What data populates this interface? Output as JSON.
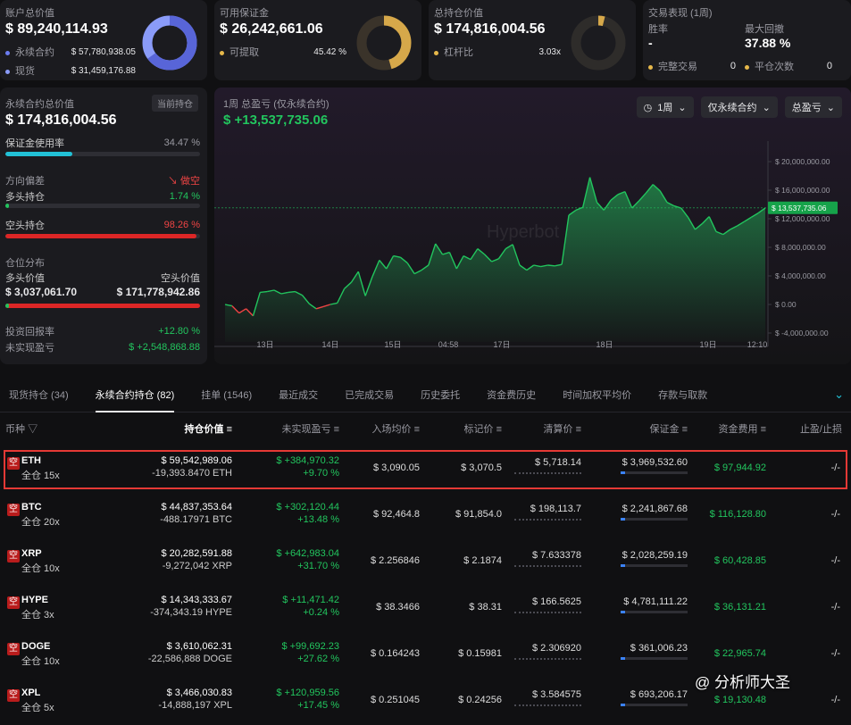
{
  "summary": {
    "account": {
      "label": "账户总价值",
      "value": "$ 89,240,114.93",
      "items": [
        {
          "label": "永续合约",
          "value": "$ 57,780,938.05",
          "color": "#6b7cf0"
        },
        {
          "label": "现货",
          "value": "$ 31,459,176.88",
          "color": "#8a9bf8"
        }
      ],
      "ring_fraction": 0.65
    },
    "margin": {
      "label": "可用保证金",
      "value": "$ 26,242,661.06",
      "items": [
        {
          "label": "可提取",
          "value": "45.42 %",
          "color": "#e6b84a"
        }
      ],
      "ring_fraction": 0.4542
    },
    "position": {
      "label": "总持仓价值",
      "value": "$ 174,816,004.56",
      "items": [
        {
          "label": "杠杆比",
          "value": "3.03x",
          "color": "#e6b84a"
        }
      ],
      "ring_fraction": 0.04
    },
    "perf": {
      "label": "交易表现 (1周)",
      "win_label": "胜率",
      "win_value": "-",
      "dd_label": "最大回撤",
      "dd_value": "37.88 %",
      "closed_label": "完整交易",
      "closed_value": "0",
      "pos_label": "平仓次数",
      "pos_value": "0"
    }
  },
  "left": {
    "title": "永续合约总价值",
    "badge": "当前持仓",
    "value": "$ 174,816,004.56",
    "margin_usage_label": "保证金使用率",
    "margin_usage_value": "34.47 %",
    "margin_usage": 0.3447,
    "direction_label": "方向偏差",
    "direction_value": "做空",
    "long_label": "多头持仓",
    "long_value": "1.74 %",
    "long": 0.0174,
    "short_label": "空头持仓",
    "short_value": "98.26 %",
    "short": 0.9826,
    "dist_label": "仓位分布",
    "long_val_label": "多头价值",
    "short_val_label": "空头价值",
    "long_val": "$ 3,037,061.70",
    "short_val": "$ 171,778,942.86",
    "roi_label": "投资回报率",
    "roi_value": "+12.80 %",
    "upnl_label": "未实现盈亏",
    "upnl_value": "$ +2,548,868.88"
  },
  "chart": {
    "title": "1周 总盈亏 (仅永续合约)",
    "value": "$ +13,537,735.06",
    "filters": [
      "1周",
      "仅永续合约",
      "总盈亏"
    ],
    "watermark": "Hyperbot",
    "current_label": "$ 13,537,735.06"
  },
  "chart_data": {
    "type": "area",
    "y_ticks": [
      "$ 20,000,000.00",
      "$ 16,000,000.00",
      "$ 12,000,000.00",
      "$ 8,000,000.00",
      "$ 4,000,000.00",
      "$ 0.00",
      "$ -4,000,000.00"
    ],
    "x_ticks": [
      "13日",
      "14日",
      "15日",
      "04:58",
      "17日",
      "18日",
      "19日",
      "12:10"
    ],
    "ylim": [
      -4000000,
      24000000
    ],
    "values": [
      0,
      -200000,
      -1200000,
      -600000,
      -1600000,
      1700000,
      1800000,
      2000000,
      1500000,
      1700000,
      1800000,
      1300000,
      100000,
      -600000,
      -300000,
      0,
      200000,
      2200000,
      3100000,
      4600000,
      1200000,
      3900000,
      6200000,
      5000000,
      6800000,
      6600000,
      5800000,
      4300000,
      4800000,
      5500000,
      8500000,
      7000000,
      7300000,
      5000000,
      6800000,
      6300000,
      7800000,
      7000000,
      6000000,
      6400000,
      7800000,
      8400000,
      5500000,
      4800000,
      5500000,
      5300000,
      5500000,
      5400000,
      5600000,
      12500000,
      13200000,
      13600000,
      17800000,
      14300000,
      13200000,
      14600000,
      15400000,
      15800000,
      13500000,
      14500000,
      15600000,
      16800000,
      15900000,
      14300000,
      13800000,
      13500000,
      12200000,
      10500000,
      11300000,
      12300000,
      10200000,
      9800000,
      10500000,
      11000000,
      11600000,
      12200000,
      12800000,
      13500000
    ]
  },
  "tabs": [
    "现货持仓 (34)",
    "永续合约持仓 (82)",
    "挂单 (1546)",
    "最近成交",
    "已完成交易",
    "历史委托",
    "资金费历史",
    "时间加权平均价",
    "存款与取款"
  ],
  "columns": [
    "币种",
    "持仓价值",
    "未实现盈亏",
    "入场均价",
    "标记价",
    "清算价",
    "保证金",
    "资金费用",
    "止盈/止损"
  ],
  "rows": [
    {
      "tag": "空",
      "coin": "ETH",
      "lev": "全仓 15x",
      "val": "$ 59,542,989.06",
      "qty": "-19,393.8470 ETH",
      "pnl": "$ +384,970.32",
      "pct": "+9.70 %",
      "entry": "$ 3,090.05",
      "mark": "$ 3,070.5",
      "liq": "$ 5,718.14",
      "margin": "$ 3,969,532.60",
      "fund": "$ 97,944.92",
      "tp": "-/-"
    },
    {
      "tag": "空",
      "coin": "BTC",
      "lev": "全仓 20x",
      "val": "$ 44,837,353.64",
      "qty": "-488.17971 BTC",
      "pnl": "$ +302,120.44",
      "pct": "+13.48 %",
      "entry": "$ 92,464.8",
      "mark": "$ 91,854.0",
      "liq": "$ 198,113.7",
      "margin": "$ 2,241,867.68",
      "fund": "$ 116,128.80",
      "tp": "-/-"
    },
    {
      "tag": "空",
      "coin": "XRP",
      "lev": "全仓 10x",
      "val": "$ 20,282,591.88",
      "qty": "-9,272,042 XRP",
      "pnl": "$ +642,983.04",
      "pct": "+31.70 %",
      "entry": "$ 2.256846",
      "mark": "$ 2.1874",
      "liq": "$ 7.633378",
      "margin": "$ 2,028,259.19",
      "fund": "$ 60,428.85",
      "tp": "-/-"
    },
    {
      "tag": "空",
      "coin": "HYPE",
      "lev": "全仓 3x",
      "val": "$ 14,343,333.67",
      "qty": "-374,343.19 HYPE",
      "pnl": "$ +11,471.42",
      "pct": "+0.24 %",
      "entry": "$ 38.3466",
      "mark": "$ 38.31",
      "liq": "$ 166.5625",
      "margin": "$ 4,781,111.22",
      "fund": "$ 36,131.21",
      "tp": "-/-"
    },
    {
      "tag": "空",
      "coin": "DOGE",
      "lev": "全仓 10x",
      "val": "$ 3,610,062.31",
      "qty": "-22,586,888 DOGE",
      "pnl": "$ +99,692.23",
      "pct": "+27.62 %",
      "entry": "$ 0.164243",
      "mark": "$ 0.15981",
      "liq": "$ 2.306920",
      "margin": "$ 361,006.23",
      "fund": "$ 22,965.74",
      "tp": "-/-"
    },
    {
      "tag": "空",
      "coin": "XPL",
      "lev": "全仓 5x",
      "val": "$ 3,466,030.83",
      "qty": "-14,888,197 XPL",
      "pnl": "$ +120,959.56",
      "pct": "+17.45 %",
      "entry": "$ 0.251045",
      "mark": "$ 0.24256",
      "liq": "$ 3.584575",
      "margin": "$ 693,206.17",
      "fund": "$ 19,130.48",
      "tp": "-/-"
    }
  ],
  "footer_watermark": "@ 分析师大圣"
}
